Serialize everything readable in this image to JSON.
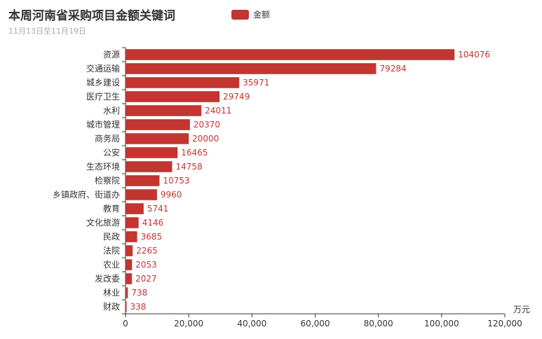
{
  "chart_data": {
    "type": "bar",
    "orientation": "horizontal",
    "title": "本周河南省采购项目金额关键词",
    "subtitle": "11月13日至11月19日",
    "legend": {
      "entries": [
        "金额"
      ],
      "placement": "top"
    },
    "series": [
      {
        "name": "金额",
        "color": "#c23531",
        "values": [
          104076,
          79284,
          35971,
          29749,
          24011,
          20370,
          20000,
          16465,
          14758,
          10753,
          9960,
          5741,
          4146,
          3685,
          2265,
          2053,
          2027,
          738,
          338
        ]
      }
    ],
    "categories": [
      "资源",
      "交通运输",
      "城乡建设",
      "医疗卫生",
      "水利",
      "城市管理",
      "商务局",
      "公安",
      "生态环境",
      "检察院",
      "乡镇政府、街道办",
      "教育",
      "文化旅游",
      "民政",
      "法院",
      "农业",
      "发改委",
      "林业",
      "财政"
    ],
    "xlabel": "万元",
    "xlim": [
      0,
      120000
    ],
    "xticks": [
      0,
      20000,
      40000,
      60000,
      80000,
      100000,
      120000
    ],
    "xtick_labels": [
      "0",
      "20,000",
      "40,000",
      "60,000",
      "80,000",
      "100,000",
      "120,000"
    ],
    "grid": false
  }
}
